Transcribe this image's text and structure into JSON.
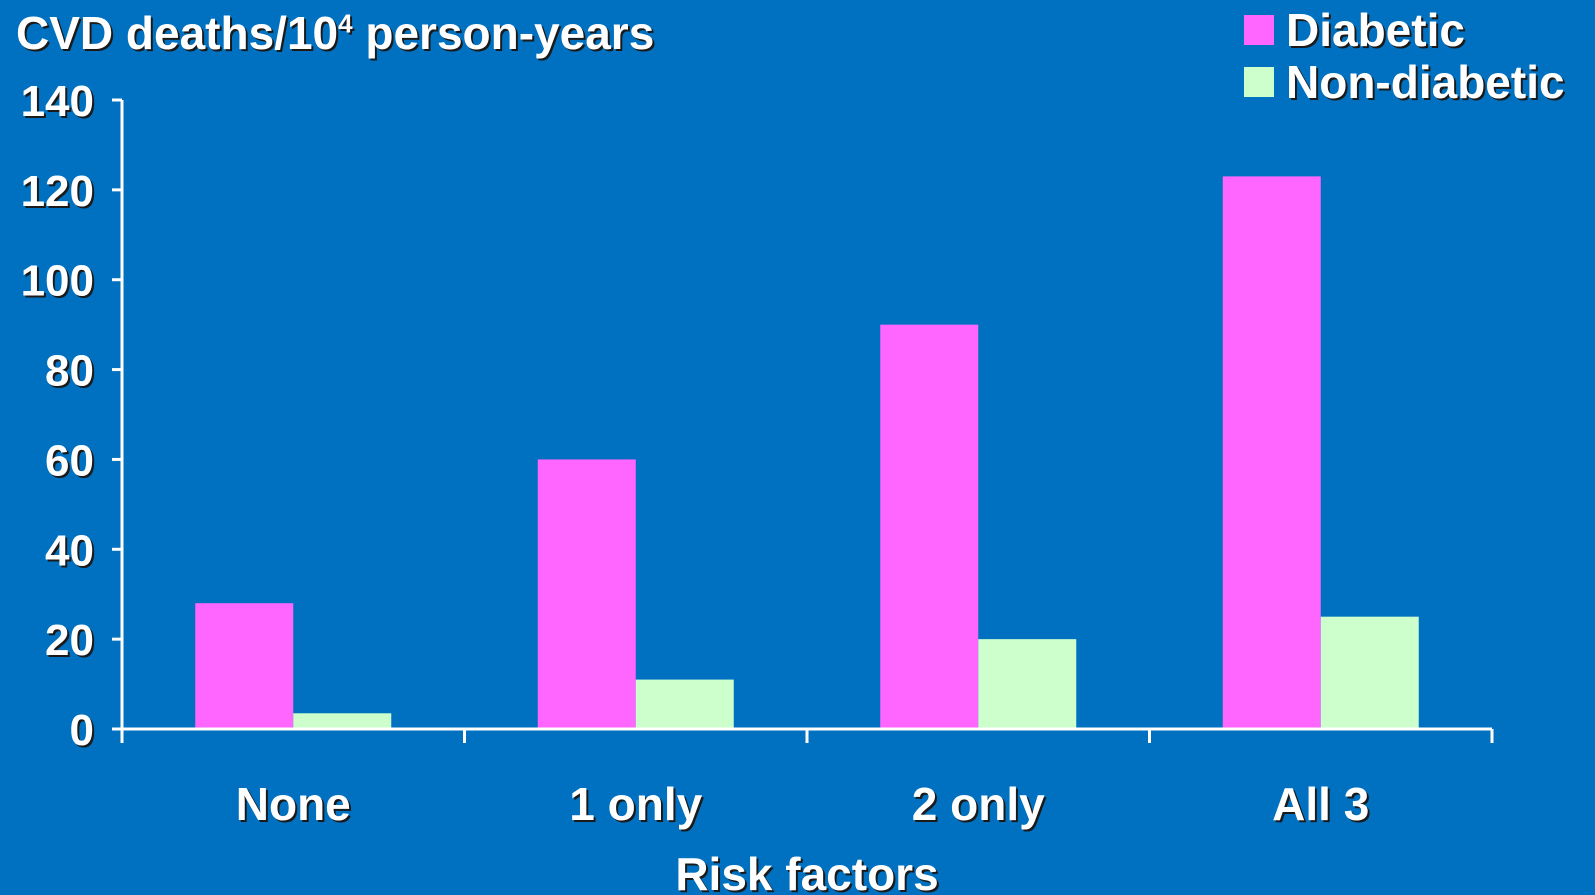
{
  "chart_data": {
    "type": "bar",
    "title": "",
    "ylabel": {
      "text": "CVD deaths/10",
      "superscript": "4",
      "suffix": " person-years"
    },
    "xlabel": "Risk factors",
    "categories": [
      "None",
      "1 only",
      "2 only",
      "All 3"
    ],
    "series": [
      {
        "name": "Diabetic",
        "color": "#ff66ff",
        "values": [
          28,
          60,
          90,
          123
        ]
      },
      {
        "name": "Non-diabetic",
        "color": "#ccffcc",
        "values": [
          3.5,
          11,
          20,
          25
        ]
      }
    ],
    "ylim": [
      0,
      140
    ],
    "yticks": [
      "0",
      "20",
      "40",
      "60",
      "80",
      "100",
      "120",
      "140"
    ],
    "grid": false,
    "legend_position": "top-right"
  },
  "colors": {
    "background": "#0070c0",
    "axis": "#ffffff",
    "text": "#ffffff"
  }
}
